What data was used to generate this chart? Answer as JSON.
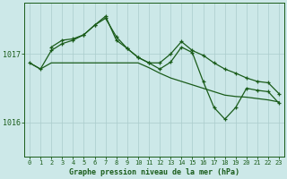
{
  "bg_color": "#cce8e8",
  "grid_color": "#aacccc",
  "line_color": "#1a5c1a",
  "text_color": "#1a5c1a",
  "xlabel": "Graphe pression niveau de la mer (hPa)",
  "ylabel_ticks": [
    1016,
    1017
  ],
  "xlim": [
    -0.5,
    23.5
  ],
  "ylim": [
    1015.5,
    1017.75
  ],
  "xticks": [
    0,
    1,
    2,
    3,
    4,
    5,
    6,
    7,
    8,
    9,
    10,
    11,
    12,
    13,
    14,
    15,
    16,
    17,
    18,
    19,
    20,
    21,
    22,
    23
  ],
  "series1_x": [
    0,
    1,
    2,
    3,
    4,
    5,
    6,
    7,
    8,
    9,
    10,
    11,
    12,
    13,
    14,
    15,
    16,
    17,
    18,
    19,
    20,
    21,
    22,
    23
  ],
  "series1": [
    1016.87,
    1016.78,
    1016.87,
    1016.87,
    1016.87,
    1016.87,
    1016.87,
    1016.87,
    1016.87,
    1016.87,
    1016.87,
    1016.8,
    1016.72,
    1016.65,
    1016.6,
    1016.55,
    1016.5,
    1016.45,
    1016.4,
    1016.38,
    1016.37,
    1016.35,
    1016.33,
    1016.3
  ],
  "series2_x": [
    0,
    1,
    2,
    3,
    4,
    5,
    6,
    7,
    8,
    9,
    10,
    11,
    12,
    13,
    14,
    15,
    16,
    17,
    18,
    19,
    20,
    21,
    22,
    23
  ],
  "series2": [
    1016.87,
    1016.78,
    1017.05,
    1017.15,
    1017.2,
    1017.28,
    1017.42,
    1017.52,
    1017.25,
    1017.08,
    1016.95,
    1016.87,
    1016.87,
    1017.0,
    1017.18,
    1017.05,
    1016.98,
    1016.87,
    1016.78,
    1016.72,
    1016.65,
    1016.6,
    1016.58,
    1016.42
  ],
  "series3_x": [
    2,
    3,
    4,
    5,
    6,
    7,
    8,
    9,
    10,
    11,
    12,
    13,
    14,
    15,
    16,
    17,
    18,
    19,
    20,
    21,
    22,
    23
  ],
  "series3": [
    1017.1,
    1017.2,
    1017.22,
    1017.28,
    1017.42,
    1017.55,
    1017.2,
    1017.08,
    1016.95,
    1016.87,
    1016.78,
    1016.88,
    1017.1,
    1017.02,
    1016.6,
    1016.22,
    1016.05,
    1016.22,
    1016.5,
    1016.47,
    1016.45,
    1016.28
  ],
  "figsize": [
    3.2,
    2.0
  ],
  "dpi": 100
}
